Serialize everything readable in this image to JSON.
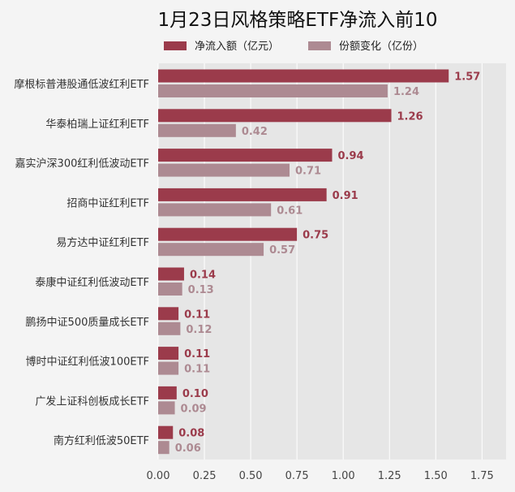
{
  "chart_data": {
    "type": "bar",
    "orientation": "horizontal",
    "title": "1月23日风格策略ETF净流入前10",
    "xlabel": "",
    "ylabel": "",
    "xlim": [
      0,
      1.88
    ],
    "xticks": [
      "0.00",
      "0.25",
      "0.50",
      "0.75",
      "1.00",
      "1.25",
      "1.50",
      "1.75"
    ],
    "grid": true,
    "legend_position": "top",
    "categories": [
      "摩根标普港股通低波红利ETF",
      "华泰柏瑞上证红利ETF",
      "嘉实沪深300红利低波动ETF",
      "招商中证红利ETF",
      "易方达中证红利ETF",
      "泰康中证红利低波动ETF",
      "鹏扬中证500质量成长ETF",
      "博时中证红利低波100ETF",
      "广发上证科创板成长ETF",
      "南方红利低波50ETF"
    ],
    "series": [
      {
        "name": "净流入额（亿元）",
        "color": "#9b3b4b",
        "values": [
          1.57,
          1.26,
          0.94,
          0.91,
          0.75,
          0.14,
          0.11,
          0.11,
          0.1,
          0.08
        ],
        "labels": [
          "1.57",
          "1.26",
          "0.94",
          "0.91",
          "0.75",
          "0.14",
          "0.11",
          "0.11",
          "0.10",
          "0.08"
        ]
      },
      {
        "name": "份额变化（亿份）",
        "color": "#ad8a92",
        "values": [
          1.24,
          0.42,
          0.71,
          0.61,
          0.57,
          0.13,
          0.12,
          0.11,
          0.09,
          0.06
        ],
        "labels": [
          "1.24",
          "0.42",
          "0.71",
          "0.61",
          "0.57",
          "0.13",
          "0.12",
          "0.11",
          "0.09",
          "0.06"
        ]
      }
    ]
  }
}
